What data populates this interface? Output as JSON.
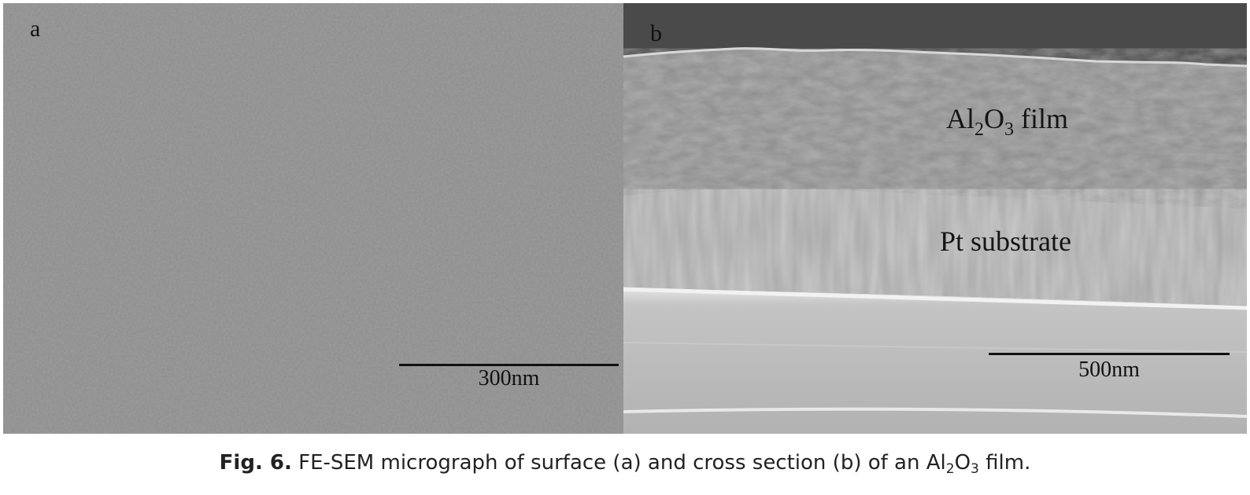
{
  "figure": {
    "panel_a": {
      "label": "a",
      "scalebar": "300nm"
    },
    "panel_b": {
      "label": "b",
      "layer_film": {
        "prefix": "Al",
        "sub1": "2",
        "mid": "O",
        "sub2": "3",
        "suffix": " film"
      },
      "layer_substrate": "Pt substrate",
      "scalebar": "500nm"
    }
  },
  "caption": {
    "number": "Fig. 6.",
    "text_before": " FE-SEM micrograph of surface (a) and cross section (b) of an Al",
    "sub1": "2",
    "mid": "O",
    "sub2": "3",
    "text_after": " film."
  },
  "colors": {
    "surface_gray": "#8f8f8f",
    "background_dark": "#4d4d4d",
    "film_gray": "#8c8c8c",
    "substrate_gray": "#a9a9a9",
    "base_gray": "#b9b9b9"
  }
}
